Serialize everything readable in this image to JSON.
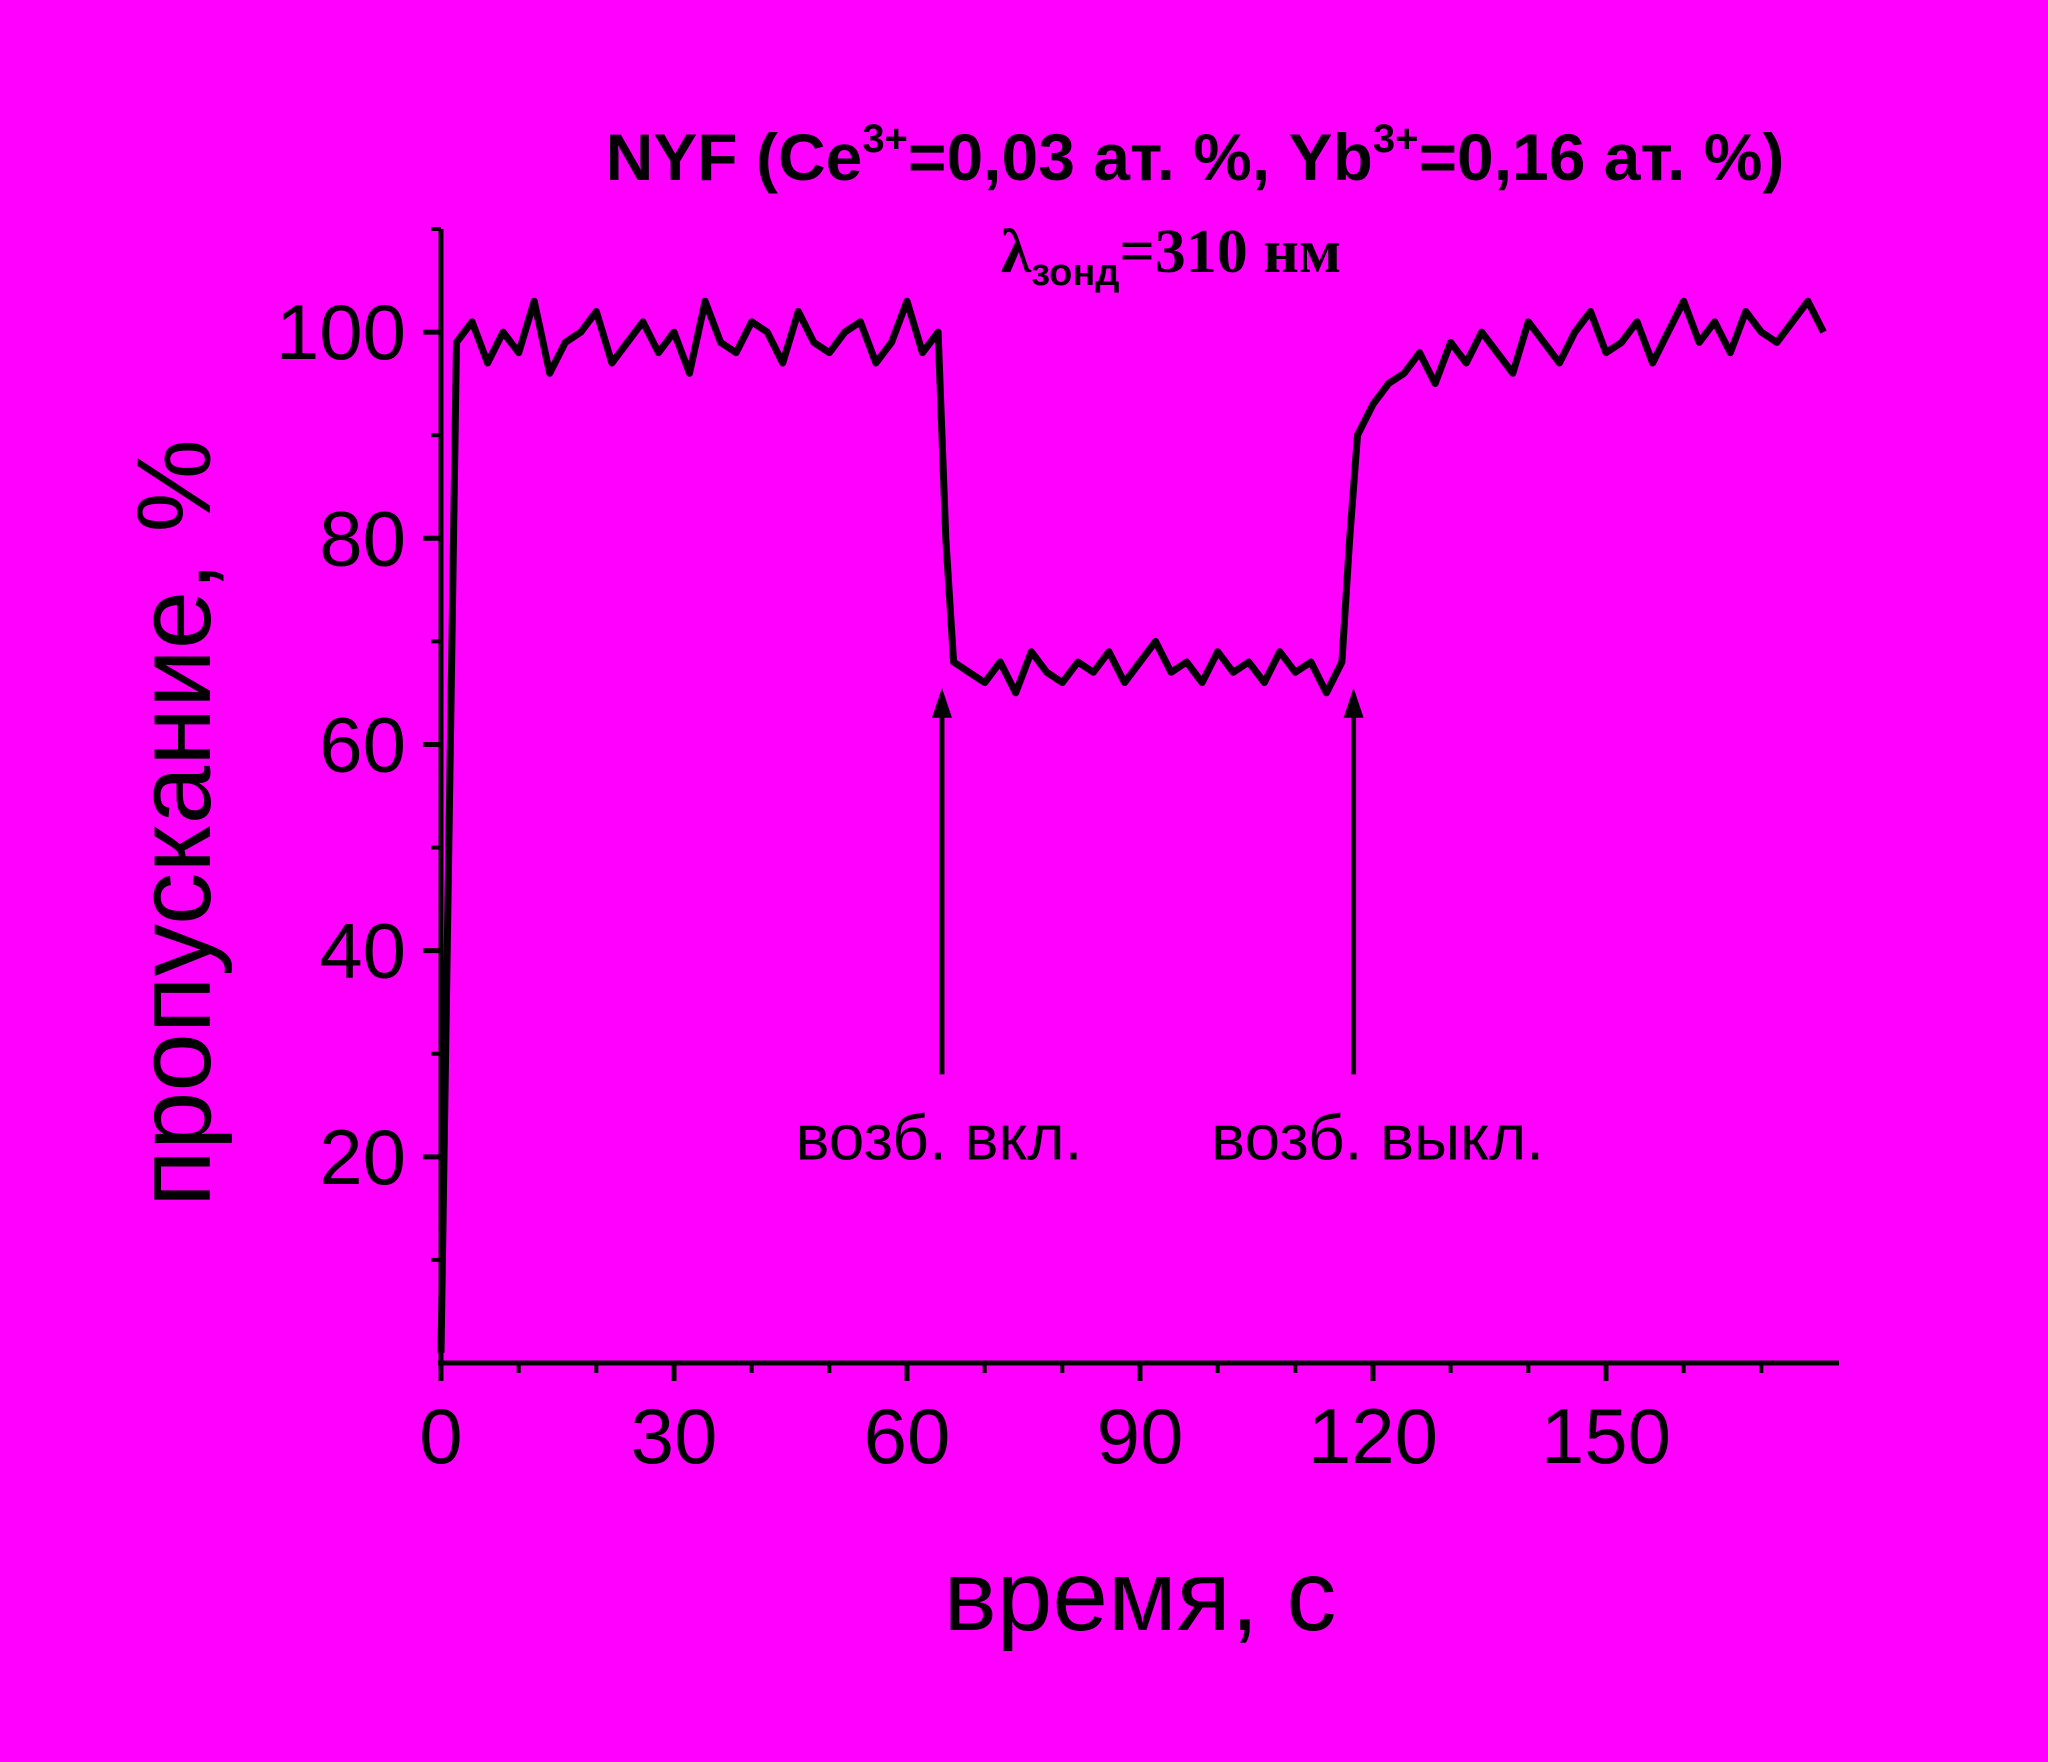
{
  "chart_data": {
    "type": "line",
    "title": [
      "NYF (Ce",
      "3+",
      "=0,03 ат. %, Yb",
      "3+",
      "=0,16 ат. %)"
    ],
    "subtitle": [
      "λ",
      "зонд",
      "=310 нм"
    ],
    "x_label": "время, с",
    "y_label": "пропускание, %",
    "color": "#000000",
    "x": [
      0,
      1,
      2,
      4,
      6,
      8,
      10,
      12,
      14,
      16,
      18,
      20,
      22,
      24,
      26,
      28,
      30,
      32,
      34,
      36,
      38,
      40,
      42,
      44,
      46,
      48,
      50,
      52,
      54,
      56,
      58,
      60,
      62,
      64,
      65,
      66,
      68,
      70,
      72,
      74,
      76,
      78,
      80,
      82,
      84,
      86,
      88,
      90,
      92,
      94,
      96,
      98,
      100,
      102,
      104,
      106,
      108,
      110,
      112,
      114,
      116,
      117,
      118,
      120,
      122,
      124,
      126,
      128,
      130,
      132,
      134,
      136,
      138,
      140,
      142,
      144,
      146,
      148,
      150,
      152,
      154,
      156,
      158,
      160,
      162,
      164,
      166,
      168,
      170,
      172,
      174,
      176,
      178
    ],
    "values": [
      1,
      50,
      99,
      101,
      97,
      100,
      98,
      103,
      96,
      99,
      100,
      102,
      97,
      99,
      101,
      98,
      100,
      96,
      103,
      99,
      98,
      101,
      100,
      97,
      102,
      99,
      98,
      100,
      101,
      97,
      99,
      103,
      98,
      100,
      80,
      68,
      67,
      66,
      68,
      65,
      69,
      67,
      66,
      68,
      67,
      69,
      66,
      68,
      70,
      67,
      68,
      66,
      69,
      67,
      68,
      66,
      69,
      67,
      68,
      65,
      68,
      80,
      90,
      93,
      95,
      96,
      98,
      95,
      99,
      97,
      100,
      98,
      96,
      101,
      99,
      97,
      100,
      102,
      98,
      99,
      101,
      97,
      100,
      103,
      99,
      101,
      98,
      102,
      100,
      99,
      101,
      103,
      100
    ],
    "xlim": [
      0,
      180
    ],
    "ylim": [
      0,
      110
    ],
    "xticks": [
      0,
      30,
      60,
      90,
      120,
      150
    ],
    "yticks": [
      20,
      40,
      60,
      80,
      100
    ],
    "xminorticks": [
      10,
      20,
      40,
      50,
      70,
      80,
      100,
      110,
      130,
      140,
      160,
      170
    ],
    "yminorticks": [
      10,
      30,
      50,
      70,
      90,
      110
    ],
    "annotations": [
      {
        "text": "возб. вкл.",
        "x": 64.5,
        "y": 65.5,
        "y_end": 28
      },
      {
        "text": "возб. выкл.",
        "x": 117.5,
        "y": 65.5,
        "y_end": 28
      }
    ]
  }
}
